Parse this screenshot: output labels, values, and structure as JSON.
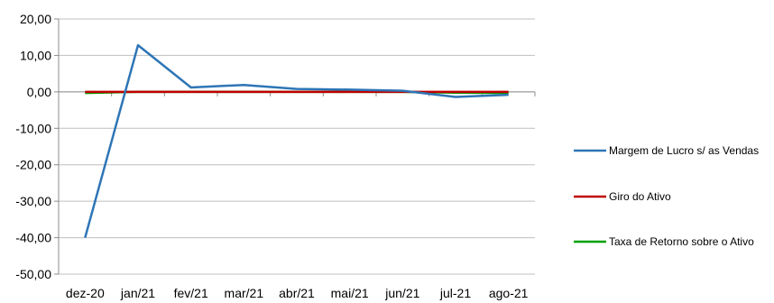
{
  "chart_data": {
    "type": "line",
    "title": "",
    "xlabel": "",
    "ylabel": "",
    "categories": [
      "dez-20",
      "jan/21",
      "fev/21",
      "mar/21",
      "abr/21",
      "mai/21",
      "jun/21",
      "jul-21",
      "ago-21"
    ],
    "ylim": [
      -50,
      20
    ],
    "ytick_step": 10,
    "ytick_labels": [
      "20,00",
      "10,00",
      "0,00",
      "-10,00",
      "-20,00",
      "-30,00",
      "-40,00",
      "-50,00"
    ],
    "grid": true,
    "legend_position": "right",
    "series": [
      {
        "name": "Margem de Lucro s/ as Vendas",
        "color": "#2E75B6",
        "values": [
          -40.0,
          12.8,
          1.2,
          1.9,
          0.8,
          0.6,
          0.3,
          -1.4,
          -0.8
        ]
      },
      {
        "name": "Giro do Ativo",
        "color": "#C00000",
        "values": [
          0.0,
          0.0,
          0.0,
          0.0,
          0.0,
          0.0,
          0.0,
          0.0,
          0.0
        ]
      },
      {
        "name": "Taxa de Retorno sobre o Ativo",
        "color": "#00A000",
        "values": [
          -0.3,
          0.0,
          0.0,
          0.0,
          0.0,
          0.0,
          0.0,
          -0.2,
          -0.3
        ]
      }
    ]
  }
}
